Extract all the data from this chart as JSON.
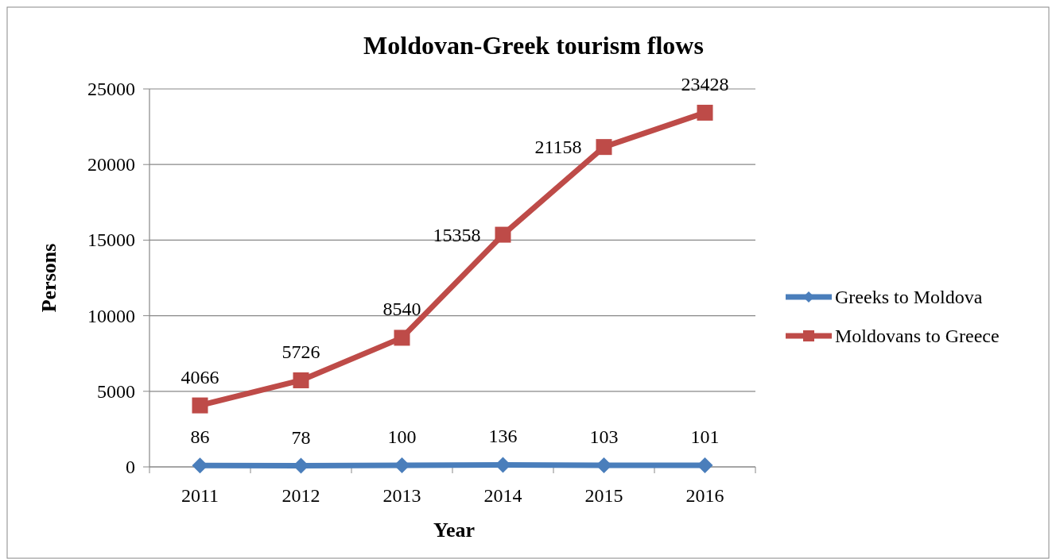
{
  "chart_data": {
    "type": "line",
    "title": "Moldovan-Greek tourism flows",
    "xlabel": "Year",
    "ylabel": "Persons",
    "categories": [
      "2011",
      "2012",
      "2013",
      "2014",
      "2015",
      "2016"
    ],
    "series": [
      {
        "name": "Greeks to Moldova",
        "color": "#4a7ebb",
        "marker": "diamond",
        "values": [
          86,
          78,
          100,
          136,
          103,
          101
        ]
      },
      {
        "name": "Moldovans to Greece",
        "color": "#be4b48",
        "marker": "square",
        "values": [
          4066,
          5726,
          8540,
          15358,
          21158,
          23428
        ]
      }
    ],
    "ylim": [
      0,
      25000
    ],
    "yticks": [
      0,
      5000,
      10000,
      15000,
      20000,
      25000
    ],
    "grid": "y",
    "legend": "right",
    "data_labels": true,
    "line_style": "solid"
  }
}
